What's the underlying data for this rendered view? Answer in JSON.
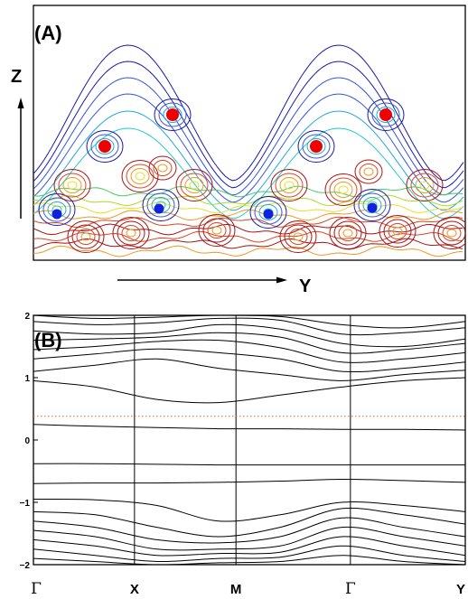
{
  "panel_a": {
    "label": "(A)",
    "z_axis_label": "Z",
    "y_axis_label": "Y",
    "contour_colors": [
      "#1a1aa8",
      "#3355dd",
      "#22aadd",
      "#22cccc",
      "#44cc66",
      "#aadd22",
      "#eedd22",
      "#ee9922",
      "#dd4422",
      "#aa1111"
    ],
    "red_atom_color": "#ee0000",
    "blue_atom_color": "#1122dd"
  },
  "panel_b": {
    "label": "(B)",
    "fermi_line_color": "#dd6633"
  },
  "chart_data": {
    "type": "line",
    "title": "",
    "xlabel": "",
    "ylabel": "",
    "x_ticks": [
      "Γ",
      "X",
      "M",
      "Γ",
      "Y"
    ],
    "y_ticks": [
      "2",
      "1",
      "0",
      "−1",
      "−2"
    ],
    "ylim": [
      -2,
      2
    ],
    "fermi_level": 0.38,
    "grid": false,
    "series": [
      {
        "values": [
          2.0,
          1.95,
          1.97,
          2.0,
          1.98,
          1.85,
          1.8,
          1.9
        ]
      },
      {
        "values": [
          1.9,
          1.85,
          1.88,
          1.95,
          1.92,
          1.7,
          1.72,
          1.8
        ]
      },
      {
        "values": [
          1.75,
          1.7,
          1.72,
          1.85,
          1.78,
          1.55,
          1.5,
          1.62
        ]
      },
      {
        "values": [
          1.6,
          1.62,
          1.65,
          1.72,
          1.65,
          1.4,
          1.45,
          1.55
        ]
      },
      {
        "values": [
          1.45,
          1.5,
          1.58,
          1.6,
          1.48,
          1.25,
          1.3,
          1.4
        ]
      },
      {
        "values": [
          1.3,
          1.38,
          1.46,
          1.4,
          1.3,
          1.1,
          1.15,
          1.25
        ]
      },
      {
        "values": [
          1.1,
          1.2,
          1.3,
          1.15,
          1.05,
          0.95,
          1.05,
          1.12
        ]
      },
      {
        "values": [
          0.95,
          0.85,
          0.65,
          0.6,
          0.72,
          0.85,
          0.95,
          1.0
        ]
      },
      {
        "values": [
          0.25,
          0.22,
          0.2,
          0.18,
          0.18,
          0.17,
          0.17,
          0.16
        ]
      },
      {
        "values": [
          -0.38,
          -0.38,
          -0.39,
          -0.4,
          -0.4,
          -0.4,
          -0.4,
          -0.4
        ]
      },
      {
        "values": [
          -0.7,
          -0.69,
          -0.69,
          -0.68,
          -0.66,
          -0.63,
          -0.65,
          -0.68
        ]
      },
      {
        "values": [
          -0.95,
          -0.96,
          -1.05,
          -1.3,
          -1.2,
          -1.0,
          -1.05,
          -1.15
        ]
      },
      {
        "values": [
          -1.15,
          -1.2,
          -1.4,
          -1.55,
          -1.4,
          -1.1,
          -1.2,
          -1.35
        ]
      },
      {
        "values": [
          -1.3,
          -1.4,
          -1.6,
          -1.65,
          -1.55,
          -1.25,
          -1.4,
          -1.55
        ]
      },
      {
        "values": [
          -1.45,
          -1.55,
          -1.75,
          -1.75,
          -1.7,
          -1.4,
          -1.55,
          -1.7
        ]
      },
      {
        "values": [
          -1.6,
          -1.7,
          -1.85,
          -1.82,
          -1.8,
          -1.55,
          -1.7,
          -1.85
        ]
      },
      {
        "values": [
          -1.75,
          -1.85,
          -1.95,
          -1.9,
          -1.88,
          -1.7,
          -1.85,
          -1.95
        ]
      },
      {
        "values": [
          -1.9,
          -1.95,
          -2.0,
          -1.97,
          -1.95,
          -1.85,
          -1.95,
          -2.0
        ]
      }
    ]
  }
}
